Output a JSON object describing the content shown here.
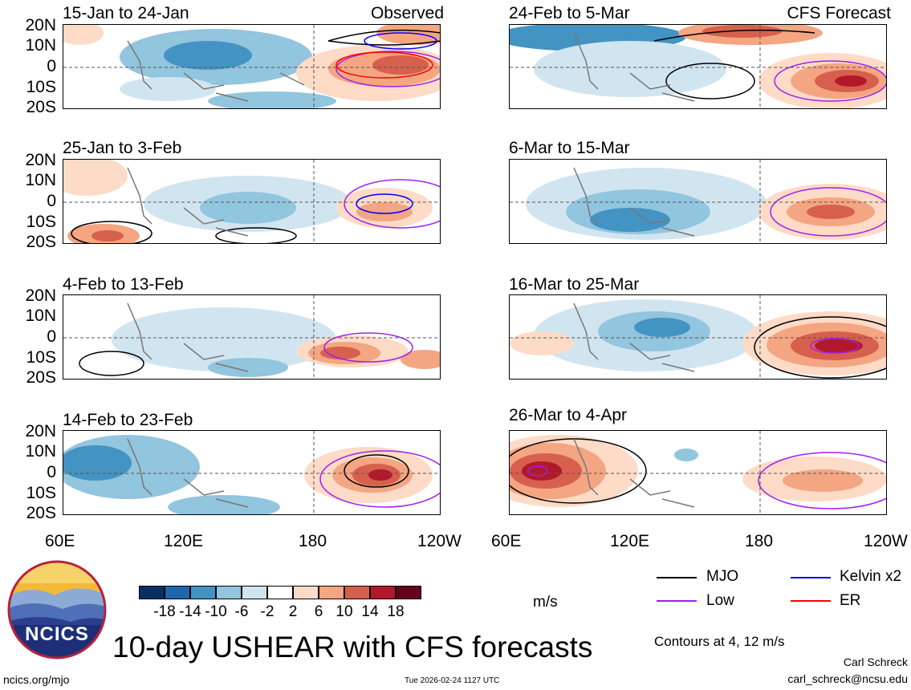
{
  "panels": [
    {
      "title": "15-Jan to 24-Jan",
      "label": "Observed"
    },
    {
      "title": "25-Jan to 3-Feb",
      "label": ""
    },
    {
      "title": "4-Feb to 13-Feb",
      "label": ""
    },
    {
      "title": "14-Feb to 23-Feb",
      "label": ""
    },
    {
      "title": "24-Feb to 5-Mar",
      "label": "CFS Forecast"
    },
    {
      "title": "6-Mar to 15-Mar",
      "label": ""
    },
    {
      "title": "16-Mar to 25-Mar",
      "label": ""
    },
    {
      "title": "26-Mar to 4-Apr",
      "label": ""
    }
  ],
  "lat_labels": [
    "20N",
    "10N",
    "0",
    "10S",
    "20S"
  ],
  "lon_labels": [
    "60E",
    "120E",
    "180",
    "120W"
  ],
  "colorbar": {
    "labels": [
      "-18",
      "-14",
      "-10",
      "-6",
      "-2",
      "2",
      "6",
      "10",
      "14",
      "18"
    ],
    "colors": [
      "#053061",
      "#2166ac",
      "#4393c3",
      "#92c5de",
      "#d1e5f0",
      "#ffffff",
      "#fddbc7",
      "#f4a582",
      "#d6604d",
      "#b2182b",
      "#67001f"
    ],
    "units": "m/s"
  },
  "legend": {
    "items": [
      {
        "label": "MJO",
        "color": "#000000"
      },
      {
        "label": "Kelvin x2",
        "color": "#0000ff"
      },
      {
        "label": "Low",
        "color": "#a020f0"
      },
      {
        "label": "ER",
        "color": "#ff0000"
      }
    ],
    "contours_note": "Contours at 4, 12 m/s"
  },
  "main_title": "10-day USHEAR with CFS forecasts",
  "logo_text": "NCICS",
  "footer": {
    "website": "ncics.org/mjo",
    "timestamp": "Tue 2026-02-24 1127 UTC",
    "author": "Carl Schreck",
    "email": "carl_schreck@ncsu.edu"
  }
}
